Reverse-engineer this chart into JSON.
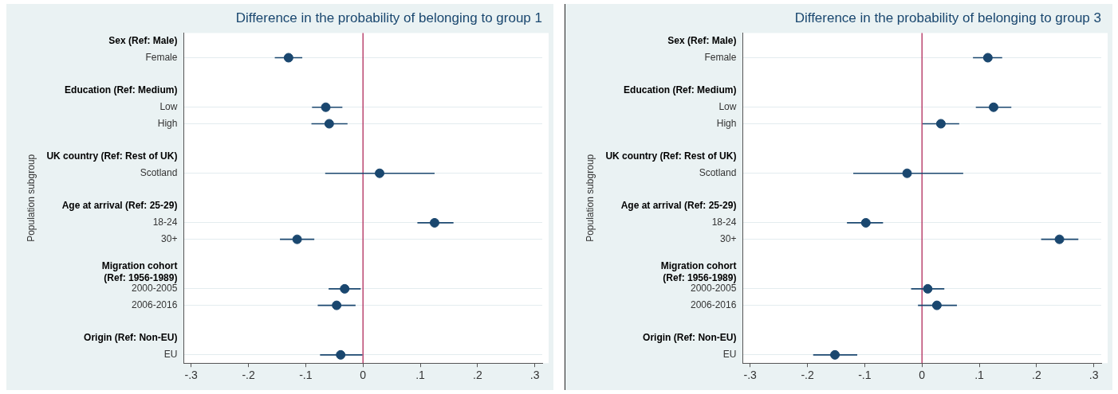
{
  "chart_data": [
    {
      "type": "scatter",
      "orientation": "horizontal",
      "title": "Difference in the probability of belonging to group 1",
      "ylabel": "Population subgroup",
      "categories": [
        "Sex (Ref: Male)",
        "Female",
        null,
        "Education (Ref: Medium)",
        "Low",
        "High",
        null,
        "UK country (Ref: Rest of UK)",
        "Scotland",
        null,
        "Age at arrival (Ref: 25-29)",
        "18-24",
        "30+",
        null,
        "Migration cohort (Ref: 1956-1989)",
        "2000-2005",
        "2006-2016",
        null,
        "Origin (Ref: Non-EU)",
        "EU"
      ],
      "values": [
        null,
        -0.13,
        null,
        null,
        -0.065,
        -0.059,
        null,
        null,
        0.029,
        null,
        null,
        0.125,
        -0.115,
        null,
        null,
        -0.032,
        -0.046,
        null,
        null,
        -0.039
      ],
      "errors": [
        null,
        [
          -0.154,
          -0.106
        ],
        null,
        null,
        [
          -0.089,
          -0.036
        ],
        [
          -0.09,
          -0.027
        ],
        null,
        null,
        [
          -0.066,
          0.125
        ],
        null,
        null,
        [
          0.095,
          0.158
        ],
        [
          -0.145,
          -0.085
        ],
        null,
        null,
        [
          -0.06,
          -0.004
        ],
        [
          -0.079,
          -0.013
        ],
        null,
        null,
        [
          -0.075,
          -0.001
        ]
      ],
      "color": "#1a476f",
      "marker": "circle",
      "grid": "y",
      "xlim": [
        -0.313,
        0.313
      ],
      "xticks": [
        {
          "value": -0.3,
          "label": "-.3"
        },
        {
          "value": -0.2,
          "label": "-.2"
        },
        {
          "value": -0.1,
          "label": "-.1"
        },
        0,
        {
          "value": 0.1,
          "label": ".1"
        },
        {
          "value": 0.2,
          "label": ".2"
        },
        {
          "value": 0.3,
          "label": ".3"
        }
      ],
      "ref_lines": [
        {
          "axis": "x",
          "value": 0,
          "color": "#b02a5b"
        }
      ]
    },
    {
      "type": "scatter",
      "orientation": "horizontal",
      "title": "Difference in the probability of belonging to group 3",
      "ylabel": "Population subgroup",
      "categories": [
        "Sex (Ref: Male)",
        "Female",
        null,
        "Education (Ref: Medium)",
        "Low",
        "High",
        null,
        "UK country (Ref: Rest of UK)",
        "Scotland",
        null,
        "Age at arrival (Ref: 25-29)",
        "18-24",
        "30+",
        null,
        "Migration cohort (Ref: 1956-1989)",
        "2000-2005",
        "2006-2016",
        null,
        "Origin (Ref: Non-EU)",
        "EU"
      ],
      "values": [
        null,
        0.115,
        null,
        null,
        0.125,
        0.033,
        null,
        null,
        -0.026,
        null,
        null,
        -0.098,
        0.24,
        null,
        null,
        0.01,
        0.026,
        null,
        null,
        -0.152
      ],
      "errors": [
        null,
        [
          0.089,
          0.14
        ],
        null,
        null,
        [
          0.094,
          0.156
        ],
        [
          0.001,
          0.065
        ],
        null,
        null,
        [
          -0.12,
          0.072
        ],
        null,
        null,
        [
          -0.131,
          -0.068
        ],
        [
          0.208,
          0.273
        ],
        null,
        null,
        [
          -0.019,
          0.039
        ],
        [
          -0.007,
          0.061
        ],
        null,
        null,
        [
          -0.19,
          -0.113
        ]
      ],
      "color": "#1a476f",
      "marker": "circle",
      "grid": "y",
      "xlim": [
        -0.313,
        0.313
      ],
      "xticks": [
        {
          "value": -0.3,
          "label": "-.3"
        },
        {
          "value": -0.2,
          "label": "-.2"
        },
        {
          "value": -0.1,
          "label": "-.1"
        },
        0,
        {
          "value": 0.1,
          "label": ".1"
        },
        {
          "value": 0.2,
          "label": ".2"
        },
        {
          "value": 0.3,
          "label": ".3"
        }
      ],
      "ref_lines": [
        {
          "axis": "x",
          "value": 0,
          "color": "#b02a5b"
        }
      ]
    }
  ]
}
